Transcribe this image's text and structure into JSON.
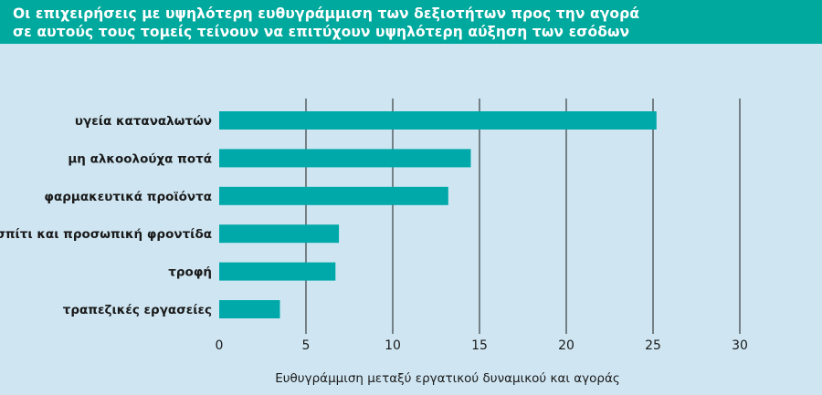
{
  "header": {
    "title_line1": "Οι επιχειρήσεις με υψηλότερη ευθυγράμμιση των δεξιοτήτων προς την αγορά",
    "title_line2": "σε αυτούς τους τομείς τείνουν να επιτύχουν υψηλότερη αύξηση των εσόδων"
  },
  "colors": {
    "bar": "#00a9a9",
    "background": "#cfe6f2",
    "banner": "#00a99d",
    "gridline": "#1a1a1a"
  },
  "chart_data": {
    "type": "bar",
    "orientation": "horizontal",
    "categories": [
      "υγεία καταναλωτών",
      "μη αλκοολούχα ποτά",
      "φαρμακευτικά προϊόντα",
      "σπίτι και προσωπική φροντίδα",
      "τροφή",
      "τραπεζικές εργασείες"
    ],
    "values": [
      25.2,
      14.5,
      13.2,
      6.9,
      6.7,
      3.5
    ],
    "xlabel": "Ευθυγράμμιση μεταξύ εργατικού δυναμικού και αγοράς",
    "ylabel": "",
    "xlim": [
      0,
      30
    ],
    "xticks": [
      "0",
      "5",
      "10",
      "15",
      "20",
      "25",
      "30"
    ],
    "grid": "vertical"
  }
}
